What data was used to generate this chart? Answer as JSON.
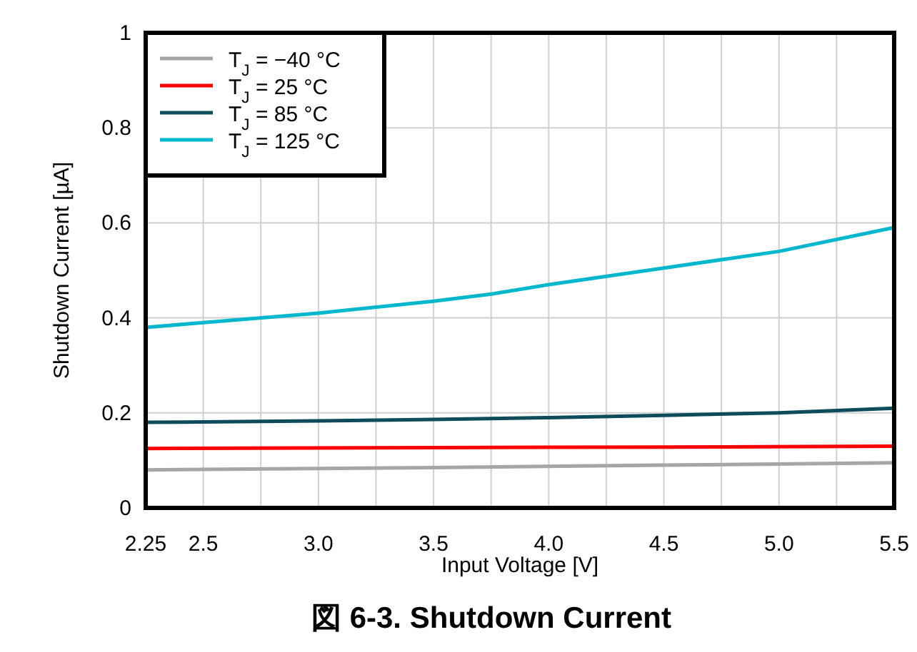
{
  "chart_data": {
    "type": "line",
    "title": "図 6-3. Shutdown Current",
    "xlabel": "Input Voltage [V]",
    "ylabel": "Shutdown Current [µA]",
    "xlim": [
      2.25,
      5.5
    ],
    "ylim": [
      0,
      1
    ],
    "xticks": [
      2.25,
      2.5,
      {
        "value": 2.75,
        "label": null
      },
      {
        "value": 3,
        "label": "3.0"
      },
      {
        "value": 3.25,
        "label": null
      },
      3.5,
      {
        "value": 3.75,
        "label": null
      },
      {
        "value": 4,
        "label": "4.0"
      },
      {
        "value": 4.25,
        "label": null
      },
      4.5,
      {
        "value": 4.75,
        "label": null
      },
      {
        "value": 5,
        "label": "5.0"
      },
      {
        "value": 5.25,
        "label": null
      },
      5.5
    ],
    "yticks": [
      0,
      0.2,
      0.4,
      0.6,
      0.8,
      1
    ],
    "grid": true,
    "legend": "top left",
    "line_style": "solid",
    "marker": "none",
    "series": [
      {
        "name": "T$_{J}$ = −40 °C",
        "color": "#a6a6a6",
        "x": [
          2.25,
          3.5,
          4.5,
          5.5
        ],
        "values": [
          0.08,
          0.085,
          0.09,
          0.095
        ]
      },
      {
        "name": "T$_{J}$ = 25 °C",
        "color": "#ff0000",
        "x": [
          2.25,
          3.5,
          4.5,
          5.5
        ],
        "values": [
          0.125,
          0.127,
          0.128,
          0.13
        ]
      },
      {
        "name": "T$_{J}$ = 85 °C",
        "color": "#0e4c5c",
        "x": [
          2.25,
          3.0,
          3.5,
          4.0,
          4.5,
          5.0,
          5.5
        ],
        "values": [
          0.18,
          0.183,
          0.186,
          0.19,
          0.195,
          0.2,
          0.21
        ]
      },
      {
        "name": "T$_{J}$ = 125 °C",
        "color": "#00b7cd",
        "x": [
          2.25,
          2.5,
          3.0,
          3.5,
          3.75,
          4.0,
          4.5,
          5.0,
          5.5
        ],
        "values": [
          0.38,
          0.39,
          0.41,
          0.435,
          0.45,
          0.47,
          0.505,
          0.54,
          0.59
        ]
      }
    ]
  }
}
